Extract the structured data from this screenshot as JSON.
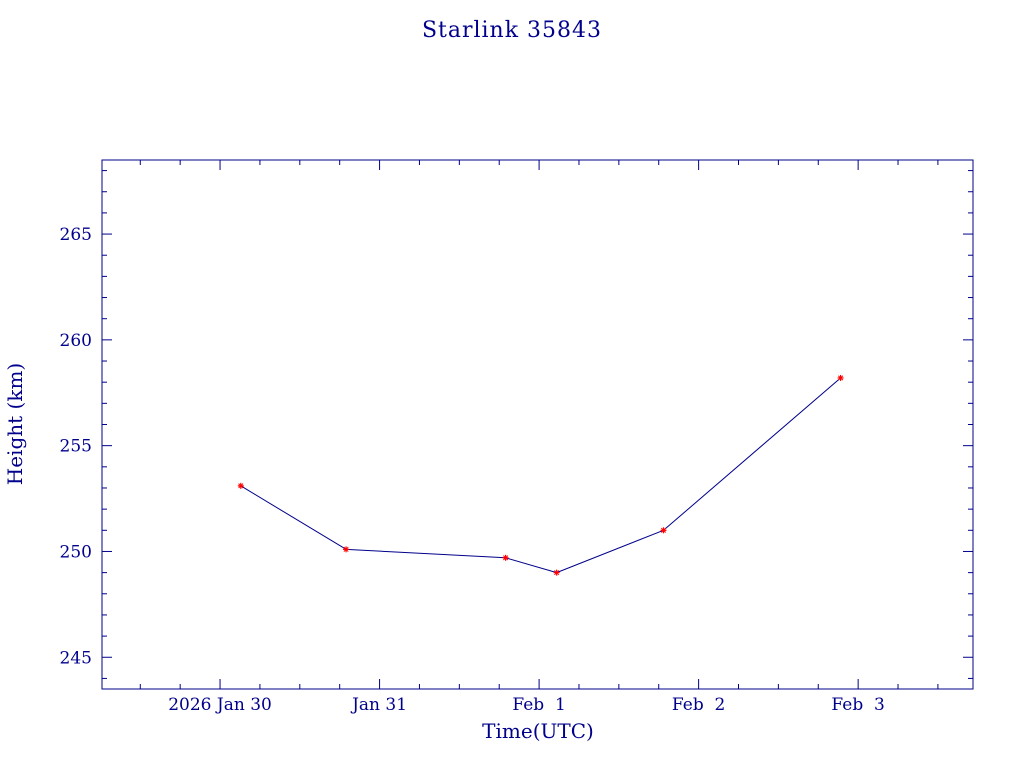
{
  "colors": {
    "axis": "#00008b",
    "line": "#00008b",
    "marker": "#ff0000",
    "text": "#00008b",
    "background": "#ffffff"
  },
  "chart_data": {
    "type": "line",
    "title": "Starlink 35843",
    "xlabel": "Time(UTC)",
    "ylabel": "Height (km)",
    "x_ticks": [
      {
        "t": 0,
        "label": "2026 Jan 30"
      },
      {
        "t": 1,
        "label": "Jan 31"
      },
      {
        "t": 2,
        "label": "Feb  1"
      },
      {
        "t": 3,
        "label": "Feb  2"
      },
      {
        "t": 4,
        "label": "Feb  3"
      }
    ],
    "y_ticks": [
      245,
      250,
      255,
      260,
      265
    ],
    "xlim": [
      -0.74,
      4.72
    ],
    "ylim": [
      243.5,
      268.5
    ],
    "x_minor_step": 0.25,
    "y_minor_step": 1,
    "grid": false,
    "legend": "none",
    "marker": "asterisk",
    "series": [
      {
        "name": "",
        "x": [
          0.13,
          0.79,
          1.79,
          2.11,
          2.78,
          3.89
        ],
        "y": [
          253.1,
          250.1,
          249.7,
          249.0,
          251.0,
          258.2
        ]
      }
    ]
  }
}
